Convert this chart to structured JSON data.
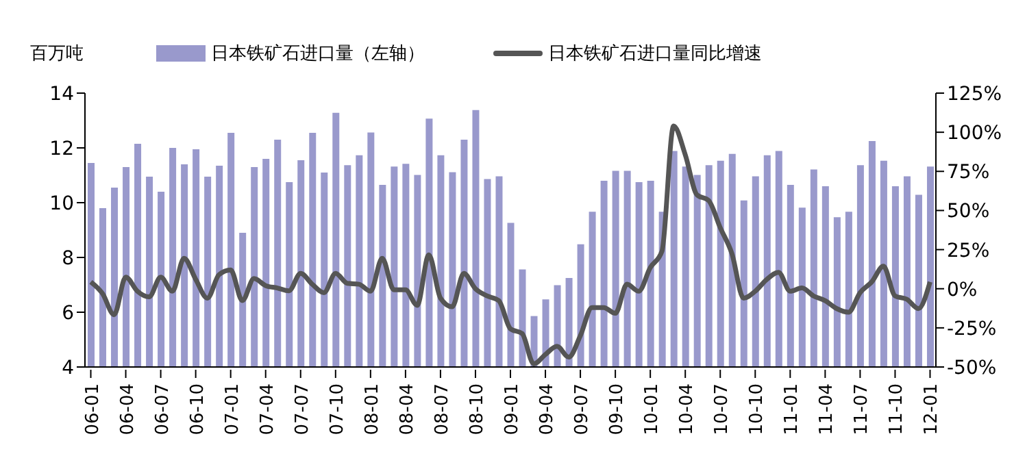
{
  "chart_data": {
    "type": "bar",
    "ylabel": "百万吨",
    "legend": "top",
    "categories": [
      "06-01",
      null,
      null,
      "06-04",
      null,
      null,
      "06-07",
      null,
      null,
      "06-10",
      null,
      null,
      "07-01",
      null,
      null,
      "07-04",
      null,
      null,
      "07-07",
      null,
      null,
      "07-10",
      null,
      null,
      "08-01",
      null,
      null,
      "08-04",
      null,
      null,
      "08-07",
      null,
      null,
      "08-10",
      null,
      null,
      "09-01",
      null,
      null,
      "09-04",
      null,
      null,
      "09-07",
      null,
      null,
      "09-10",
      null,
      null,
      "10-01",
      null,
      null,
      "10-04",
      null,
      null,
      "10-07",
      null,
      null,
      "10-10",
      null,
      null,
      "11-01",
      null,
      null,
      "11-04",
      null,
      null,
      "11-07",
      null,
      null,
      "11-10",
      null,
      null,
      "12-01"
    ],
    "series": [
      {
        "name": "日本铁矿石进口量（左轴）",
        "color": "#9999cc",
        "values": [
          11.45,
          9.8,
          10.55,
          11.3,
          12.15,
          10.95,
          10.4,
          12.0,
          11.4,
          11.95,
          10.95,
          11.35,
          12.55,
          8.9,
          11.3,
          11.6,
          12.3,
          10.75,
          11.55,
          12.55,
          11.1,
          13.28,
          11.37,
          11.73,
          12.56,
          10.65,
          11.32,
          11.42,
          11.01,
          13.07,
          11.73,
          11.11,
          12.3,
          13.38,
          10.86,
          10.96,
          9.26,
          7.56,
          5.86,
          6.47,
          6.99,
          7.25,
          8.48,
          9.67,
          10.8,
          11.16,
          11.16,
          10.75,
          10.8,
          9.67,
          11.89,
          11.32,
          11.01,
          11.37,
          11.53,
          11.78,
          10.08,
          10.96,
          11.73,
          11.89,
          10.65,
          9.82,
          11.21,
          10.6,
          9.47,
          9.67,
          11.37,
          12.25,
          11.53,
          10.6,
          10.96,
          10.29,
          11.32
        ]
      },
      {
        "name": "日本铁矿石进口量同比增速",
        "type": "line",
        "axis": "y2",
        "color": "#555555",
        "values": [
          4.4,
          -3,
          -16.6,
          7.4,
          -1.6,
          -5.2,
          7.4,
          -1.6,
          19.5,
          6,
          -6,
          9,
          12,
          -7.6,
          6.5,
          2,
          0.5,
          -1.3,
          9.8,
          2.9,
          -2.5,
          9.8,
          3.5,
          2.9,
          -1.6,
          19.5,
          -0.7,
          -0.7,
          -10.6,
          21.6,
          -6,
          -11.5,
          9.8,
          0,
          -4.6,
          -7.6,
          -25.6,
          -28.6,
          -48,
          -42,
          -36.8,
          -43.7,
          -30,
          -12,
          -12,
          -15.7,
          2.9,
          -1.6,
          13.5,
          24,
          104,
          85.6,
          60,
          56.4,
          39,
          22.5,
          -6,
          -1.6,
          6,
          10.5,
          -1.6,
          0.5,
          -4.6,
          -7.6,
          -12.7,
          -15,
          -2.5,
          4.4,
          14.4,
          -4.6,
          -6.7,
          -12.7,
          4.4
        ]
      }
    ],
    "ylim": [
      4,
      14
    ],
    "yticks": [
      4,
      6,
      8,
      10,
      12,
      14
    ],
    "y2lim": [
      -50,
      125
    ],
    "y2ticks": [
      {
        "value": -50,
        "label": "-50%"
      },
      {
        "value": -25,
        "label": "-25%"
      },
      {
        "value": 0,
        "label": "0%"
      },
      {
        "value": 25,
        "label": "25%"
      },
      {
        "value": 50,
        "label": "50%"
      },
      {
        "value": 75,
        "label": "75%"
      },
      {
        "value": 100,
        "label": "100%"
      },
      {
        "value": 125,
        "label": "125%"
      }
    ]
  }
}
